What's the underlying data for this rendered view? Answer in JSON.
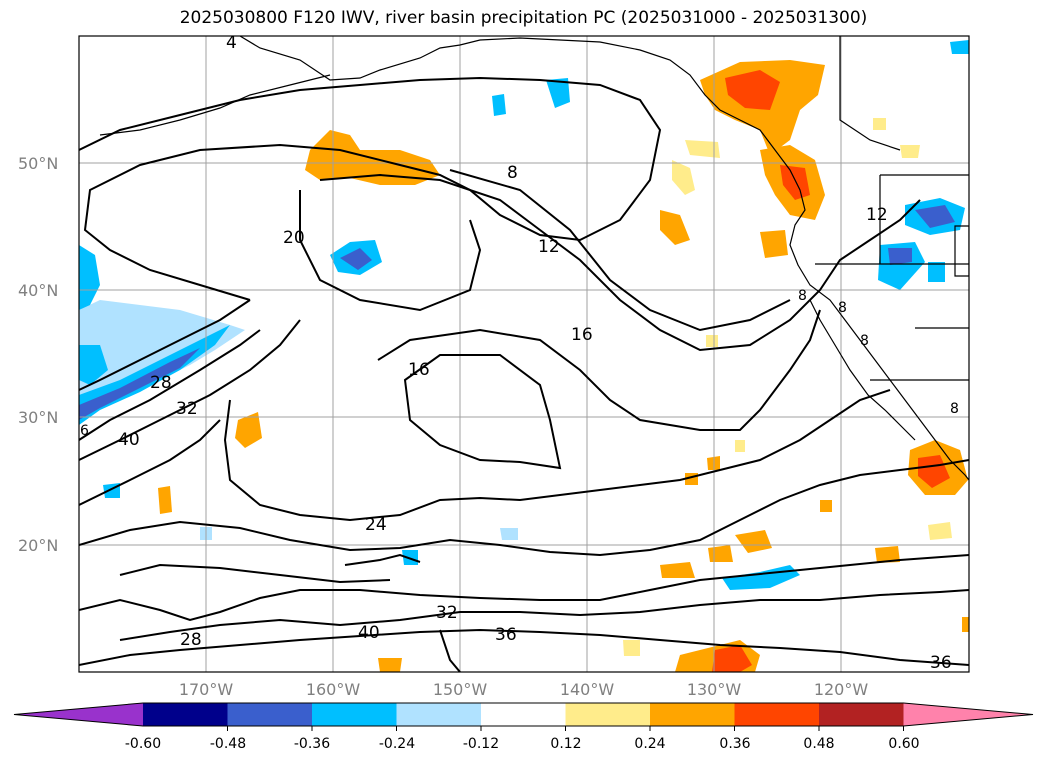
{
  "title": "2025030800 F120 IWV, river basin precipitation PC (2025031000 - 2025031300)",
  "map": {
    "lat_labels": [
      "50°N",
      "40°N",
      "30°N",
      "20°N"
    ],
    "lon_labels": [
      "170°W",
      "160°W",
      "150°W",
      "140°W",
      "130°W",
      "120°W"
    ],
    "contour_labels": [
      "4",
      "8",
      "12",
      "16",
      "16",
      "20",
      "24",
      "28",
      "32",
      "32",
      "36",
      "36",
      "40",
      "28",
      "12",
      "8",
      "8",
      "8",
      "8",
      "6",
      "40"
    ],
    "colors": {
      "contour": "#000000",
      "grid": "#a0a0a0",
      "coast": "#000000"
    }
  },
  "colorbar": {
    "levels": [
      "-0.60",
      "-0.48",
      "-0.36",
      "-0.24",
      "-0.12",
      "0.12",
      "0.24",
      "0.36",
      "0.48",
      "0.60"
    ],
    "colors": [
      "#9932cc",
      "#00008b",
      "#3a5fcd",
      "#00bfff",
      "#b0e2ff",
      "#ffffff",
      "#ffec8b",
      "#ffa500",
      "#ff4500",
      "#b22222",
      "#ff82ab"
    ]
  }
}
